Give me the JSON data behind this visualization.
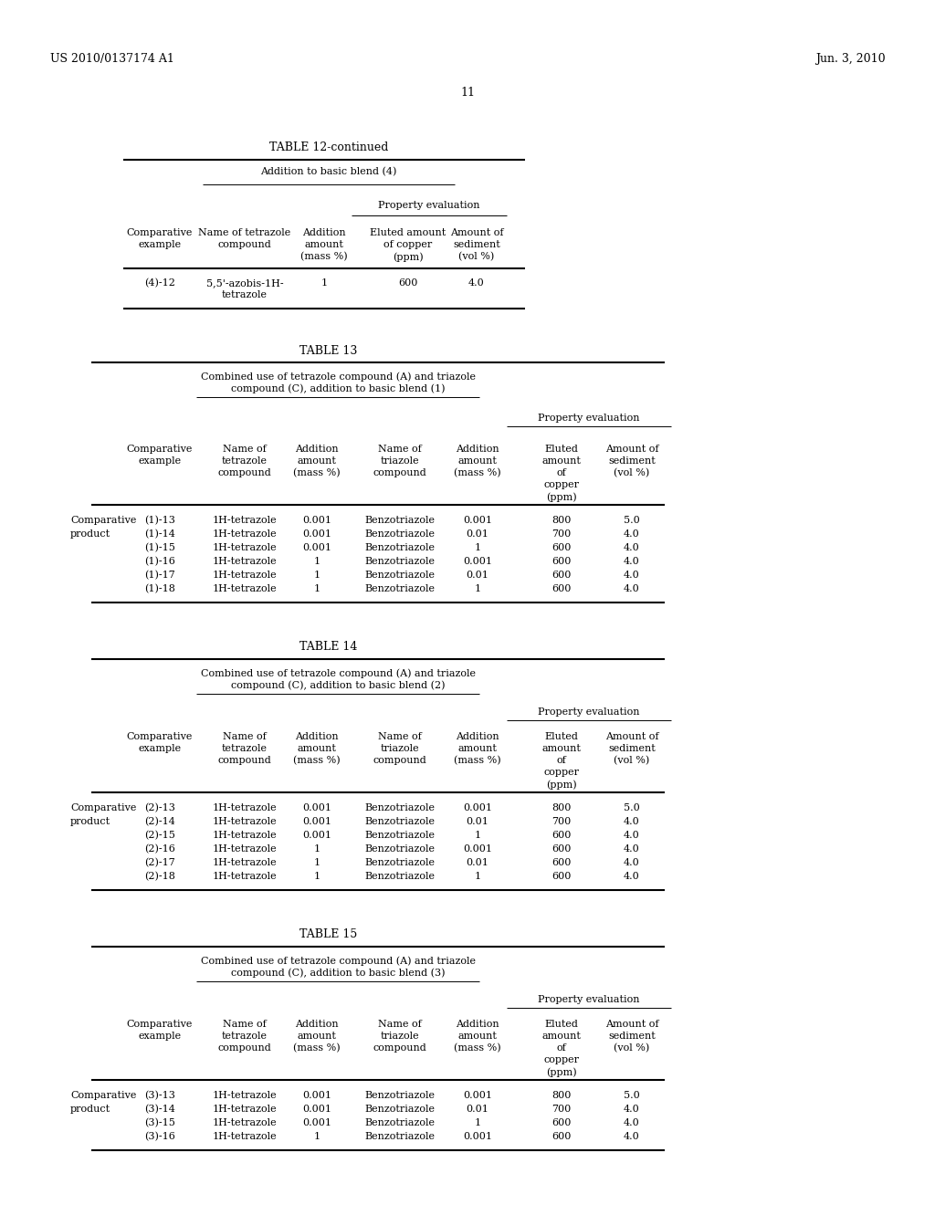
{
  "header_left": "US 2010/0137174 A1",
  "header_right": "Jun. 3, 2010",
  "page_num": "11",
  "background": "#ffffff"
}
